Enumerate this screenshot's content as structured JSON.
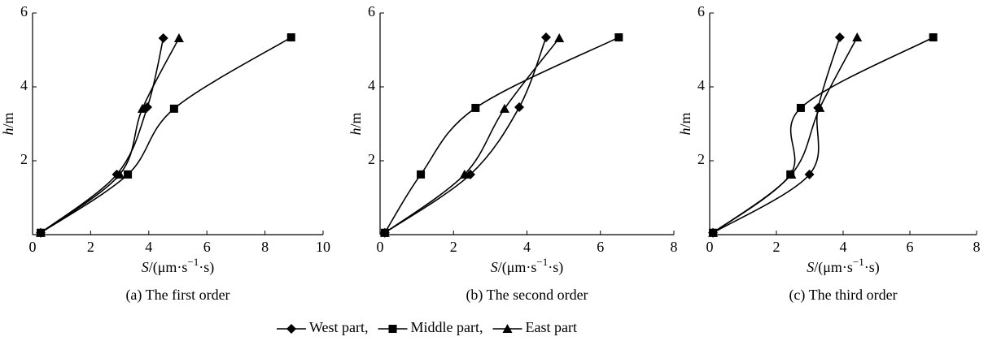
{
  "chart_data": [
    {
      "type": "line",
      "title": "(a) The first order",
      "xlabel": {
        "var": "S",
        "pre": "/(μm·s",
        "sup": "−1",
        "post": "·s)"
      },
      "ylabel": {
        "var": "h",
        "unit": "/m"
      },
      "xlim": [
        0,
        10
      ],
      "xticks": [
        0,
        2,
        4,
        6,
        8,
        10
      ],
      "ylim": [
        0,
        6
      ],
      "yticks": [
        2,
        4,
        6
      ],
      "series": [
        {
          "color": "#000000",
          "x": [
            0.28,
            2.9,
            3.95,
            4.5
          ],
          "y": [
            0.05,
            1.63,
            3.45,
            5.32
          ]
        },
        {
          "color": "#000000",
          "x": [
            0.28,
            3.28,
            4.87,
            8.9
          ],
          "y": [
            0.05,
            1.63,
            3.41,
            5.34
          ]
        },
        {
          "color": "#000000",
          "x": [
            0.28,
            3.0,
            3.78,
            5.04
          ],
          "y": [
            0.05,
            1.63,
            3.41,
            5.32
          ]
        }
      ]
    },
    {
      "type": "line",
      "title": "(b) The second order",
      "xlabel": {
        "var": "S",
        "pre": "/(μm·s",
        "sup": "−1",
        "post": "·s)"
      },
      "ylabel": {
        "var": "h",
        "unit": "/m"
      },
      "xlim": [
        0,
        8
      ],
      "xticks": [
        0,
        2,
        4,
        6,
        8
      ],
      "ylim": [
        0,
        6
      ],
      "yticks": [
        2,
        4,
        6
      ],
      "series": [
        {
          "color": "#000000",
          "x": [
            0.13,
            2.46,
            3.79,
            4.52
          ],
          "y": [
            0.05,
            1.63,
            3.45,
            5.34
          ]
        },
        {
          "color": "#000000",
          "x": [
            0.13,
            1.11,
            2.6,
            6.5
          ],
          "y": [
            0.05,
            1.63,
            3.43,
            5.34
          ]
        },
        {
          "color": "#000000",
          "x": [
            0.13,
            2.3,
            3.39,
            4.88
          ],
          "y": [
            0.05,
            1.63,
            3.41,
            5.32
          ]
        }
      ]
    },
    {
      "type": "line",
      "title": "(c) The third order",
      "xlabel": {
        "var": "S",
        "pre": "/(μm·s",
        "sup": "−1",
        "post": "·s)"
      },
      "ylabel": {
        "var": "h",
        "unit": "/m"
      },
      "xlim": [
        0,
        8
      ],
      "xticks": [
        0,
        2,
        4,
        6,
        8
      ],
      "ylim": [
        0,
        6
      ],
      "yticks": [
        2,
        4,
        6
      ],
      "series": [
        {
          "color": "#000000",
          "x": [
            0.1,
            2.99,
            3.25,
            3.9
          ],
          "y": [
            0.05,
            1.63,
            3.43,
            5.34
          ]
        },
        {
          "color": "#000000",
          "x": [
            0.1,
            2.42,
            2.73,
            6.7
          ],
          "y": [
            0.05,
            1.63,
            3.43,
            5.34
          ]
        },
        {
          "color": "#000000",
          "x": [
            0.1,
            2.45,
            3.3,
            4.42
          ],
          "y": [
            0.05,
            1.63,
            3.43,
            5.34
          ]
        }
      ]
    }
  ],
  "legend": [
    {
      "name": "West part,",
      "marker": "diamond"
    },
    {
      "name": "Middle part,",
      "marker": "square"
    },
    {
      "name": "East part",
      "marker": "triangle"
    }
  ]
}
